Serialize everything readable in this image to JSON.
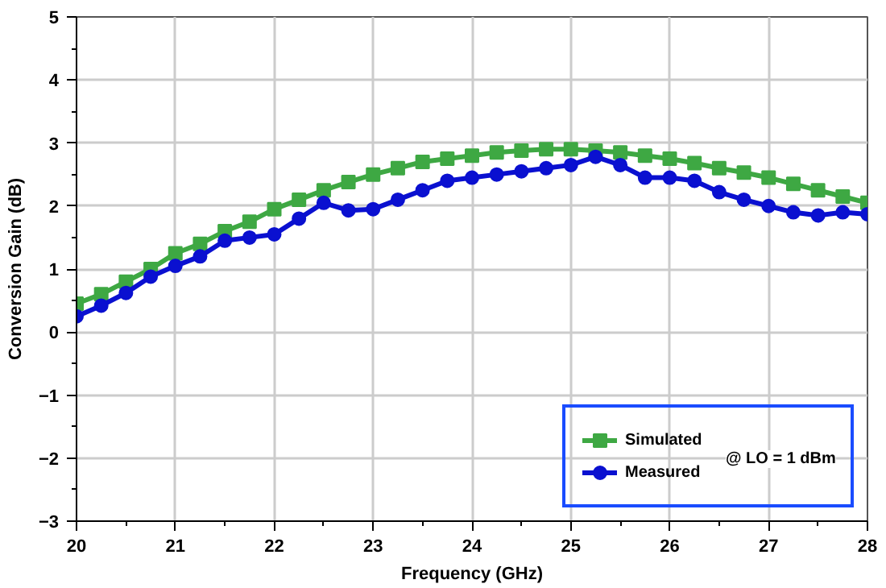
{
  "chart_data": {
    "type": "line",
    "xlabel": "Frequency (GHz)",
    "ylabel": "Conversion Gain (dB)",
    "xlim": [
      20,
      28
    ],
    "ylim": [
      -3,
      5
    ],
    "xticks": [
      20,
      21,
      22,
      23,
      24,
      25,
      26,
      27,
      28
    ],
    "yticks": [
      -3,
      -2,
      -1,
      0,
      1,
      2,
      3,
      4,
      5
    ],
    "grid": true,
    "legend": "bottom right",
    "line_style": "solid",
    "annotations": [
      "@ LO = 1 dBm"
    ],
    "series": [
      {
        "name": "Simulated",
        "color": "#3ea843",
        "marker": "square",
        "x": [
          20,
          20.25,
          20.5,
          20.75,
          21,
          21.25,
          21.5,
          21.75,
          22,
          22.25,
          22.5,
          22.75,
          23,
          23.25,
          23.5,
          23.75,
          24,
          24.25,
          24.5,
          24.75,
          25,
          25.25,
          25.5,
          25.75,
          26,
          26.25,
          26.5,
          26.75,
          27,
          27.25,
          27.5,
          27.75,
          28
        ],
        "values": [
          0.45,
          0.6,
          0.8,
          1.0,
          1.25,
          1.4,
          1.6,
          1.75,
          1.95,
          2.1,
          2.25,
          2.38,
          2.5,
          2.6,
          2.7,
          2.75,
          2.8,
          2.85,
          2.88,
          2.9,
          2.9,
          2.88,
          2.85,
          2.8,
          2.75,
          2.68,
          2.6,
          2.53,
          2.45,
          2.35,
          2.25,
          2.15,
          2.05
        ]
      },
      {
        "name": "Measured",
        "color": "#0a10d0",
        "marker": "circle",
        "x": [
          20,
          20.25,
          20.5,
          20.75,
          21,
          21.25,
          21.5,
          21.75,
          22,
          22.25,
          22.5,
          22.75,
          23,
          23.25,
          23.5,
          23.75,
          24,
          24.25,
          24.5,
          24.75,
          25,
          25.25,
          25.5,
          25.75,
          26,
          26.25,
          26.5,
          26.75,
          27,
          27.25,
          27.5,
          27.75,
          28
        ],
        "values": [
          0.25,
          0.42,
          0.62,
          0.88,
          1.05,
          1.2,
          1.45,
          1.5,
          1.55,
          1.8,
          2.05,
          1.93,
          1.95,
          2.1,
          2.25,
          2.4,
          2.45,
          2.5,
          2.55,
          2.6,
          2.65,
          2.78,
          2.65,
          2.45,
          2.45,
          2.4,
          2.22,
          2.1,
          2.0,
          1.9,
          1.85,
          1.9,
          1.87
        ]
      }
    ]
  }
}
